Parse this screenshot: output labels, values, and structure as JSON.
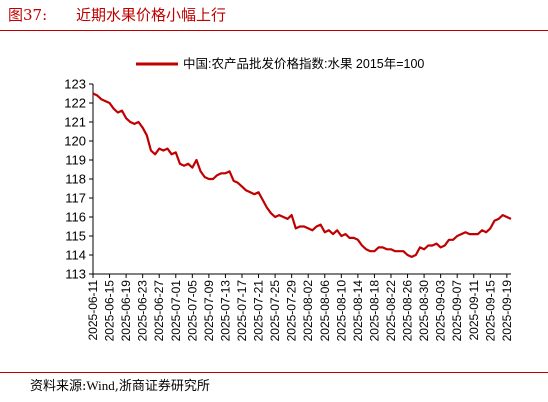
{
  "figure": {
    "number": "图37:",
    "title": "近期水果价格小幅上行",
    "source_prefix": "资料来源:",
    "source_wind": "Wind",
    "source_suffix": ",浙商证券研究所"
  },
  "colors": {
    "series": "#c00000",
    "title": "#c00000",
    "axis": "#000000"
  },
  "chart_data": {
    "type": "line",
    "title": "",
    "xlabel": "",
    "ylabel": "",
    "ylim": [
      113,
      123
    ],
    "yticks": [
      113,
      114,
      115,
      116,
      117,
      118,
      119,
      120,
      121,
      122,
      123
    ],
    "grid": false,
    "legend_position": "top-center",
    "xtick_labels": [
      "2025-06-11",
      "2025-06-15",
      "2025-06-19",
      "2025-06-23",
      "2025-06-27",
      "2025-07-01",
      "2025-07-05",
      "2025-07-09",
      "2025-07-13",
      "2025-07-17",
      "2025-07-21",
      "2025-07-25",
      "2025-07-29",
      "2025-08-02",
      "2025-08-06",
      "2025-08-10",
      "2025-08-14",
      "2025-08-18",
      "2025-08-22",
      "2025-08-26",
      "2025-08-30",
      "2025-09-03",
      "2025-09-07",
      "2025-09-11",
      "2025-09-15",
      "2025-09-19"
    ],
    "series": [
      {
        "name": "中国:农产品批发价格指数:水果  2015年=100",
        "x": [
          "2025-06-11",
          "2025-06-12",
          "2025-06-13",
          "2025-06-14",
          "2025-06-15",
          "2025-06-16",
          "2025-06-17",
          "2025-06-18",
          "2025-06-19",
          "2025-06-20",
          "2025-06-21",
          "2025-06-22",
          "2025-06-23",
          "2025-06-24",
          "2025-06-25",
          "2025-06-26",
          "2025-06-27",
          "2025-06-28",
          "2025-06-29",
          "2025-06-30",
          "2025-07-01",
          "2025-07-02",
          "2025-07-03",
          "2025-07-04",
          "2025-07-05",
          "2025-07-06",
          "2025-07-07",
          "2025-07-08",
          "2025-07-09",
          "2025-07-10",
          "2025-07-11",
          "2025-07-12",
          "2025-07-13",
          "2025-07-14",
          "2025-07-15",
          "2025-07-16",
          "2025-07-17",
          "2025-07-18",
          "2025-07-19",
          "2025-07-20",
          "2025-07-21",
          "2025-07-22",
          "2025-07-23",
          "2025-07-24",
          "2025-07-25",
          "2025-07-26",
          "2025-07-27",
          "2025-07-28",
          "2025-07-29",
          "2025-07-30",
          "2025-07-31",
          "2025-08-01",
          "2025-08-02",
          "2025-08-03",
          "2025-08-04",
          "2025-08-05",
          "2025-08-06",
          "2025-08-07",
          "2025-08-08",
          "2025-08-09",
          "2025-08-10",
          "2025-08-11",
          "2025-08-12",
          "2025-08-13",
          "2025-08-14",
          "2025-08-15",
          "2025-08-16",
          "2025-08-17",
          "2025-08-18",
          "2025-08-19",
          "2025-08-20",
          "2025-08-21",
          "2025-08-22",
          "2025-08-23",
          "2025-08-24",
          "2025-08-25",
          "2025-08-26",
          "2025-08-27",
          "2025-08-28",
          "2025-08-29",
          "2025-08-30",
          "2025-08-31",
          "2025-09-01",
          "2025-09-02",
          "2025-09-03",
          "2025-09-04",
          "2025-09-05",
          "2025-09-06",
          "2025-09-07",
          "2025-09-08",
          "2025-09-09",
          "2025-09-10",
          "2025-09-11",
          "2025-09-12",
          "2025-09-13",
          "2025-09-14",
          "2025-09-15",
          "2025-09-16",
          "2025-09-17",
          "2025-09-18",
          "2025-09-19",
          "2025-09-20"
        ],
        "values": [
          122.5,
          122.4,
          122.2,
          122.1,
          122.0,
          121.7,
          121.5,
          121.6,
          121.2,
          121.0,
          120.9,
          121.0,
          120.7,
          120.3,
          119.5,
          119.3,
          119.6,
          119.5,
          119.6,
          119.3,
          119.4,
          118.8,
          118.7,
          118.8,
          118.6,
          119.0,
          118.4,
          118.1,
          118.0,
          118.0,
          118.2,
          118.3,
          118.3,
          118.4,
          117.9,
          117.8,
          117.6,
          117.4,
          117.3,
          117.2,
          117.3,
          116.9,
          116.5,
          116.2,
          116.0,
          116.1,
          116.0,
          115.9,
          116.1,
          115.4,
          115.5,
          115.5,
          115.4,
          115.3,
          115.5,
          115.6,
          115.2,
          115.3,
          115.1,
          115.3,
          115.0,
          115.1,
          114.9,
          114.9,
          114.8,
          114.5,
          114.3,
          114.2,
          114.2,
          114.4,
          114.4,
          114.3,
          114.3,
          114.2,
          114.2,
          114.2,
          114.0,
          113.9,
          114.0,
          114.4,
          114.3,
          114.5,
          114.5,
          114.6,
          114.4,
          114.5,
          114.8,
          114.8,
          115.0,
          115.1,
          115.2,
          115.1,
          115.1,
          115.1,
          115.3,
          115.2,
          115.4,
          115.8,
          115.9,
          116.1,
          116.0,
          115.9
        ]
      }
    ]
  }
}
